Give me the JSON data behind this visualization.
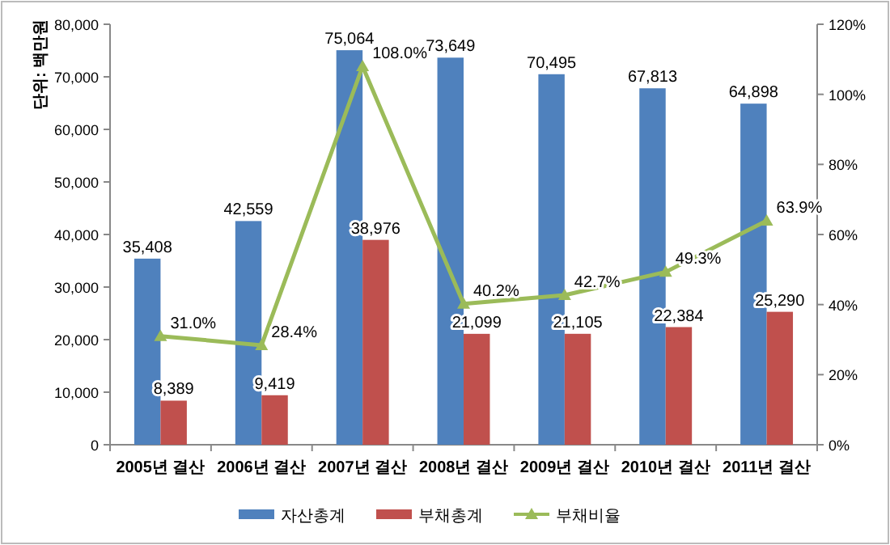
{
  "chart_data": {
    "type": "bar",
    "ylabel": "단위: 백만원",
    "categories": [
      "2005년 결산",
      "2006년 결산",
      "2007년 결산",
      "2008년 결산",
      "2009년 결산",
      "2010년 결산",
      "2011년 결산"
    ],
    "series": [
      {
        "name": "자산총계",
        "color": "#4f81bd",
        "values": [
          35408,
          42559,
          75064,
          73649,
          70495,
          67813,
          64898
        ],
        "value_labels": [
          "35,408",
          "42,559",
          "75,064",
          "73,649",
          "70,495",
          "67,813",
          "64,898"
        ]
      },
      {
        "name": "부채총계",
        "color": "#c0504d",
        "values": [
          8389,
          9419,
          38976,
          21099,
          21105,
          22384,
          25290
        ],
        "value_labels": [
          "8,389",
          "9,419",
          "38,976",
          "21,099",
          "21,105",
          "22,384",
          "25,290"
        ]
      },
      {
        "name": "부채비율",
        "type": "line",
        "axis": "y2",
        "color": "#9bbb59",
        "marker": "triangle",
        "values": [
          31.0,
          28.4,
          108.0,
          40.2,
          42.7,
          49.3,
          63.9
        ],
        "value_labels": [
          "31.0%",
          "28.4%",
          "108.0%",
          "40.2%",
          "42.7%",
          "49.3%",
          "63.9%"
        ]
      }
    ],
    "ylim": [
      0,
      80000
    ],
    "yticks": [
      {
        "value": 0,
        "label": "0"
      },
      {
        "value": 10000,
        "label": "10,000"
      },
      {
        "value": 20000,
        "label": "20,000"
      },
      {
        "value": 30000,
        "label": "30,000"
      },
      {
        "value": 40000,
        "label": "40,000"
      },
      {
        "value": 50000,
        "label": "50,000"
      },
      {
        "value": 60000,
        "label": "60,000"
      },
      {
        "value": 70000,
        "label": "70,000"
      },
      {
        "value": 80000,
        "label": "80,000"
      }
    ],
    "y2lim": [
      0,
      120
    ],
    "y2ticks": [
      {
        "value": 0,
        "label": "0%"
      },
      {
        "value": 20,
        "label": "20%"
      },
      {
        "value": 40,
        "label": "40%"
      },
      {
        "value": 60,
        "label": "60%"
      },
      {
        "value": 80,
        "label": "80%"
      },
      {
        "value": 100,
        "label": "100%"
      },
      {
        "value": 120,
        "label": "120%"
      }
    ],
    "legend": "bottom",
    "grid": false
  }
}
